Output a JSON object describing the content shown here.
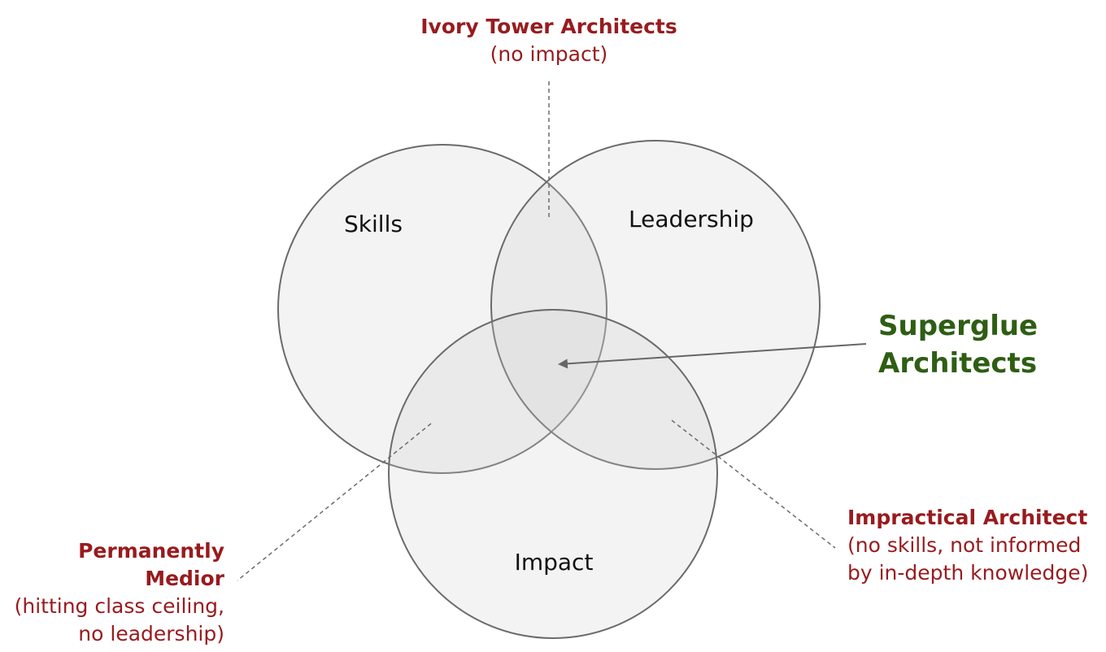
{
  "circles": {
    "skills": "Skills",
    "leadership": "Leadership",
    "impact": "Impact"
  },
  "callouts": {
    "ivory_tower": {
      "title": "Ivory Tower Architects",
      "sub": "(no impact)"
    },
    "superglue": {
      "line1": "Superglue",
      "line2": "Architects"
    },
    "impractical": {
      "title": "Impractical Architect",
      "line1": "(no skills, not informed",
      "line2": "by in-depth knowledge)"
    },
    "medior": {
      "title": "Permanently Medior",
      "line1": "(hitting class ceiling,",
      "line2": "no leadership)"
    }
  },
  "colors": {
    "callout": "#981b1e",
    "highlight": "#2e5e14",
    "circle_stroke": "#6b6b6b"
  }
}
